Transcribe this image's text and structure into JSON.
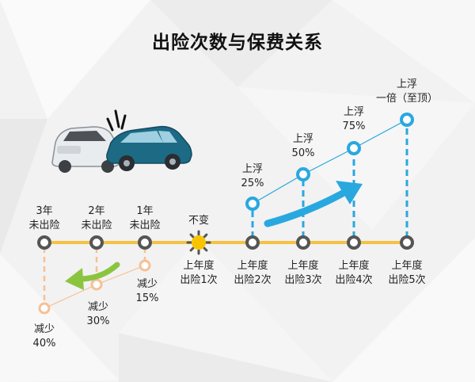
{
  "title": "出险次数与保费关系",
  "colors": {
    "timeline": "#f5c244",
    "node": "#555555",
    "discount": "#f6c096",
    "surcharge": "#29a8e0",
    "arrow_down": "#8bc53f",
    "sun": "#f8c400"
  },
  "timeline_nodes": [
    {
      "top": "3年",
      "bottom": "未出险",
      "discount": [
        "减少",
        "40%"
      ]
    },
    {
      "top": "2年",
      "bottom": "未出险",
      "discount": [
        "减少",
        "30%"
      ]
    },
    {
      "top": "1年",
      "bottom": "未出险",
      "discount": [
        "减少",
        "15%"
      ]
    },
    {
      "top": "不变",
      "below": [
        "上年度",
        "出险1次"
      ]
    },
    {
      "below": [
        "上年度",
        "出险2次"
      ],
      "surcharge": [
        "上浮",
        "25%"
      ]
    },
    {
      "below": [
        "上年度",
        "出险3次"
      ],
      "surcharge": [
        "上浮",
        "50%"
      ]
    },
    {
      "below": [
        "上年度",
        "出险4次"
      ],
      "surcharge": [
        "上浮",
        "75%"
      ]
    },
    {
      "below": [
        "上年度",
        "出险5次"
      ],
      "surcharge": [
        "上浮",
        "一倍（至顶）"
      ]
    }
  ],
  "icons": {
    "crash": "car-crash-icon",
    "sun": "sun-icon"
  }
}
